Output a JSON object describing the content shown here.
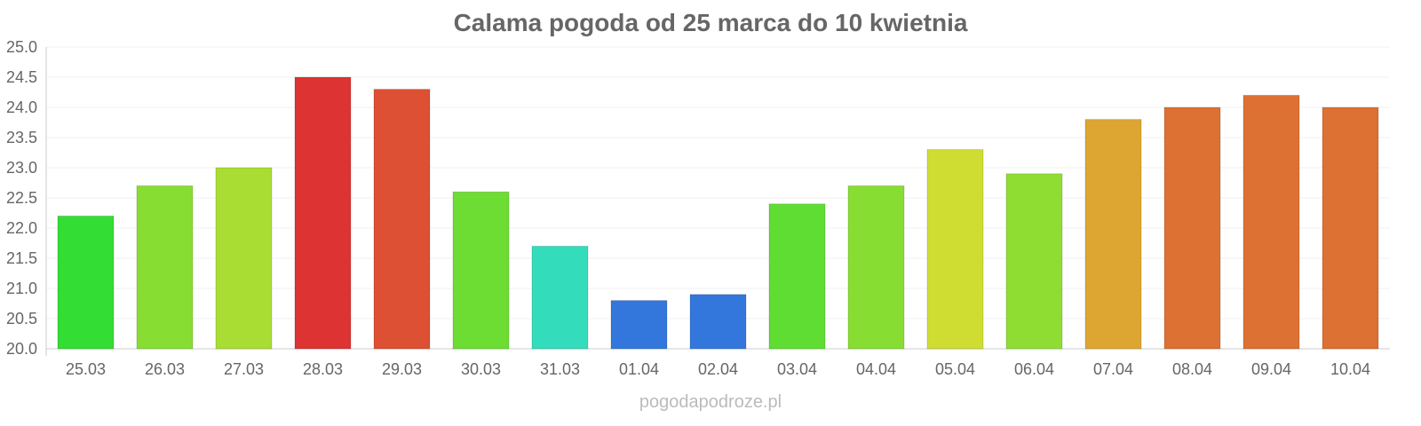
{
  "chart_data": {
    "type": "bar",
    "title": "Calama pogoda od 25 marca do 10 kwietnia",
    "xlabel": "",
    "ylabel": "",
    "ylim": [
      20.0,
      25.0
    ],
    "yticks": [
      "20.0",
      "20.5",
      "21.0",
      "21.5",
      "22.0",
      "22.5",
      "23.0",
      "23.5",
      "24.0",
      "24.5",
      "25.0"
    ],
    "grid": true,
    "categories": [
      "25.03",
      "26.03",
      "27.03",
      "28.03",
      "29.03",
      "30.03",
      "31.03",
      "01.04",
      "02.04",
      "03.04",
      "04.04",
      "05.04",
      "06.04",
      "07.04",
      "08.04",
      "09.04",
      "10.04"
    ],
    "values": [
      22.2,
      22.7,
      23.0,
      24.5,
      24.3,
      22.6,
      21.7,
      20.8,
      20.9,
      22.4,
      22.7,
      23.3,
      22.9,
      23.8,
      24.0,
      24.2,
      24.0
    ],
    "colors": [
      "#33dd33",
      "#88dd33",
      "#aadd33",
      "#dd3333",
      "#dd5033",
      "#6ddd33",
      "#33ddbb",
      "#3377dd",
      "#3377dd",
      "#60dd33",
      "#88dd33",
      "#cfdd33",
      "#8fdd33",
      "#dda633",
      "#dd7033",
      "#dd7033",
      "#dd7033"
    ]
  },
  "watermark": "pogodapodroze.pl"
}
